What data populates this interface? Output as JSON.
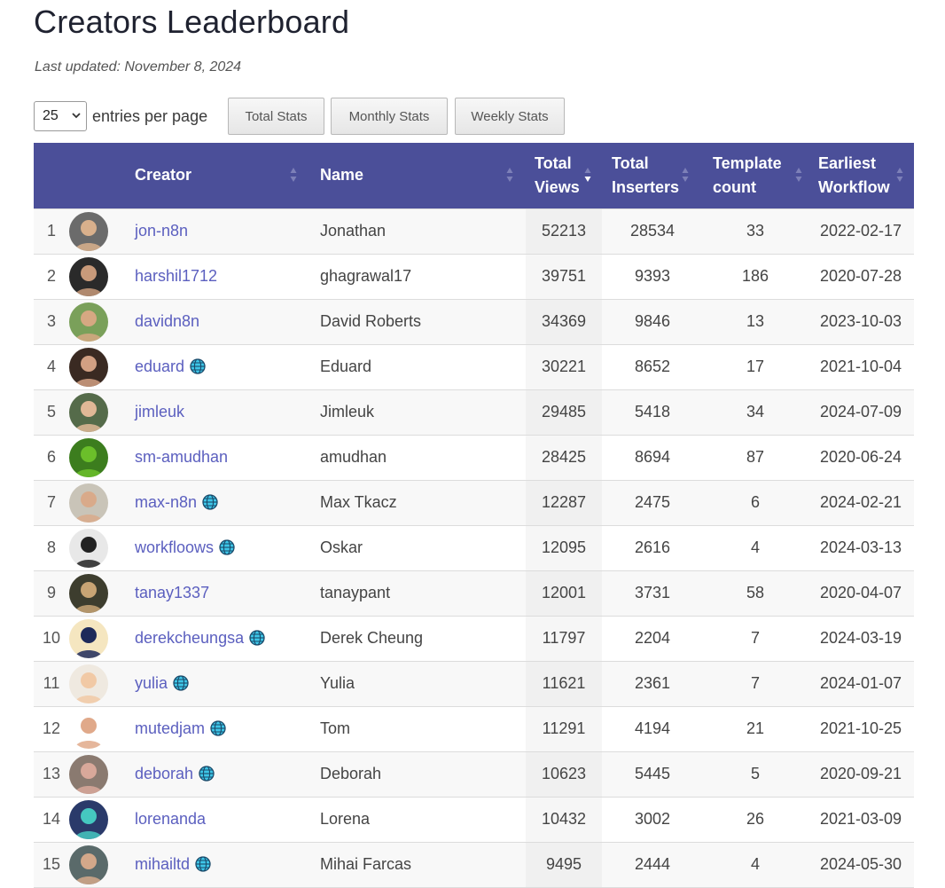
{
  "page": {
    "title": "Creators Leaderboard",
    "last_updated": "Last updated: November 8, 2024"
  },
  "controls": {
    "page_size": "25",
    "entries_label": "entries per page",
    "buttons": [
      "Total Stats",
      "Monthly Stats",
      "Weekly Stats"
    ]
  },
  "table": {
    "columns": [
      "Creator",
      "Name",
      "Total Views",
      "Total Inserters",
      "Template count",
      "Earliest Workflow"
    ],
    "header_lines": {
      "creator": "Creator",
      "name": "Name",
      "views_1": "Total",
      "views_2": "Views",
      "inserters_1": "Total",
      "inserters_2": "Inserters",
      "template_1": "Template",
      "template_2": "count",
      "earliest_1": "Earliest",
      "earliest_2": "Workflow"
    },
    "sorted_column": "Total Views",
    "sort_direction": "descending",
    "header_color": "#4b4f99",
    "link_color": "#5b5fbf",
    "rows": [
      {
        "rank": "1",
        "creator": "jon-n8n",
        "verified": false,
        "name": "Jonathan",
        "views": "52213",
        "inserters": "28534",
        "templates": "33",
        "earliest": "2022-02-17"
      },
      {
        "rank": "2",
        "creator": "harshil1712",
        "verified": false,
        "name": "ghagrawal17",
        "views": "39751",
        "inserters": "9393",
        "templates": "186",
        "earliest": "2020-07-28"
      },
      {
        "rank": "3",
        "creator": "davidn8n",
        "verified": false,
        "name": "David Roberts",
        "views": "34369",
        "inserters": "9846",
        "templates": "13",
        "earliest": "2023-10-03"
      },
      {
        "rank": "4",
        "creator": "eduard",
        "verified": true,
        "name": "Eduard",
        "views": "30221",
        "inserters": "8652",
        "templates": "17",
        "earliest": "2021-10-04"
      },
      {
        "rank": "5",
        "creator": "jimleuk",
        "verified": false,
        "name": "Jimleuk",
        "views": "29485",
        "inserters": "5418",
        "templates": "34",
        "earliest": "2024-07-09"
      },
      {
        "rank": "6",
        "creator": "sm-amudhan",
        "verified": false,
        "name": "amudhan",
        "views": "28425",
        "inserters": "8694",
        "templates": "87",
        "earliest": "2020-06-24"
      },
      {
        "rank": "7",
        "creator": "max-n8n",
        "verified": true,
        "name": "Max Tkacz",
        "views": "12287",
        "inserters": "2475",
        "templates": "6",
        "earliest": "2024-02-21"
      },
      {
        "rank": "8",
        "creator": "workfloows",
        "verified": true,
        "name": "Oskar",
        "views": "12095",
        "inserters": "2616",
        "templates": "4",
        "earliest": "2024-03-13"
      },
      {
        "rank": "9",
        "creator": "tanay1337",
        "verified": false,
        "name": "tanaypant",
        "views": "12001",
        "inserters": "3731",
        "templates": "58",
        "earliest": "2020-04-07"
      },
      {
        "rank": "10",
        "creator": "derekcheungsa",
        "verified": true,
        "name": "Derek Cheung",
        "views": "11797",
        "inserters": "2204",
        "templates": "7",
        "earliest": "2024-03-19"
      },
      {
        "rank": "11",
        "creator": "yulia",
        "verified": true,
        "name": "Yulia",
        "views": "11621",
        "inserters": "2361",
        "templates": "7",
        "earliest": "2024-01-07"
      },
      {
        "rank": "12",
        "creator": "mutedjam",
        "verified": true,
        "name": "Tom",
        "views": "11291",
        "inserters": "4194",
        "templates": "21",
        "earliest": "2021-10-25"
      },
      {
        "rank": "13",
        "creator": "deborah",
        "verified": true,
        "name": "Deborah",
        "views": "10623",
        "inserters": "5445",
        "templates": "5",
        "earliest": "2020-09-21"
      },
      {
        "rank": "14",
        "creator": "lorenanda",
        "verified": false,
        "name": "Lorena",
        "views": "10432",
        "inserters": "3002",
        "templates": "26",
        "earliest": "2021-03-09"
      },
      {
        "rank": "15",
        "creator": "mihailtd",
        "verified": true,
        "name": "Mihai Farcas",
        "views": "9495",
        "inserters": "2444",
        "templates": "4",
        "earliest": "2024-05-30"
      }
    ]
  }
}
